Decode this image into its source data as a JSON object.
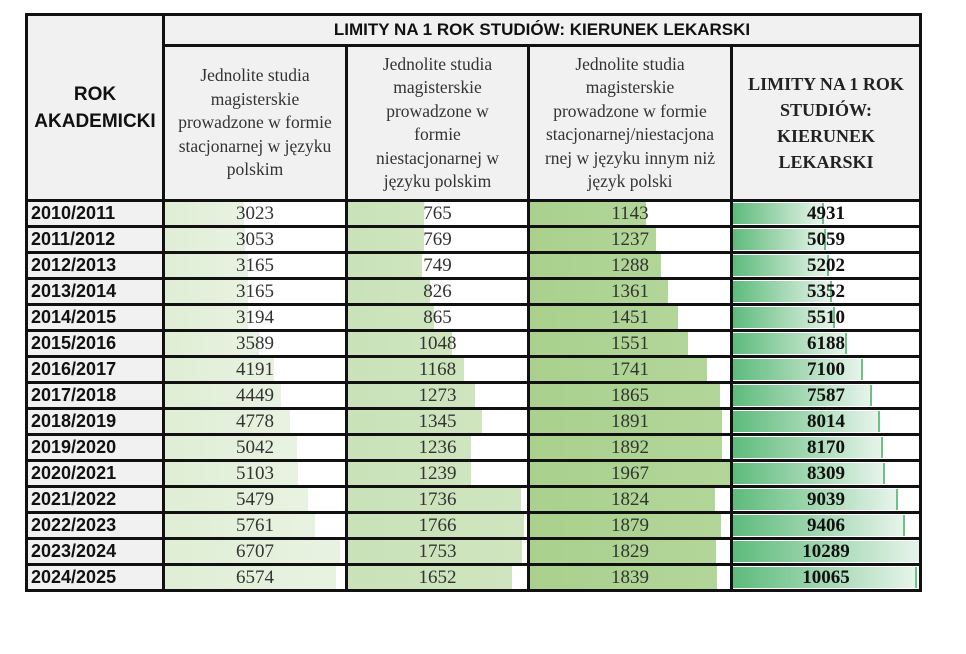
{
  "table": {
    "title": "LIMITY NA 1 ROK STUDIÓW: KIERUNEK LEKARSKI",
    "year_header": [
      "ROK",
      "AKADEMICKI"
    ],
    "columns": [
      {
        "key": "stacjonarne_pl",
        "label_lines": [
          "Jednolite studia",
          "magisterskie",
          "prowadzone w formie",
          "stacjonarnej w języku",
          "polskim"
        ],
        "bar_color": "#dfeed5"
      },
      {
        "key": "niestacjonarne_pl",
        "label_lines": [
          "Jednolite studia",
          "magisterskie",
          "prowadzone w",
          "formie",
          "niestacjonarnej w",
          "języku polskim"
        ],
        "bar_color": "#c9e2b8"
      },
      {
        "key": "obcojezyczne",
        "label_lines": [
          "Jednolite studia",
          "magisterskie",
          "prowadzone w formie",
          "stacjonarnej/niestacjona",
          "rnej w języku innym niż",
          "język polski"
        ],
        "bar_color": "#a9d18d"
      },
      {
        "key": "razem",
        "label_lines": [
          "LIMITY NA 1 ROK",
          "STUDIÓW:",
          "KIERUNEK",
          "LEKARSKI"
        ],
        "bar_color": "#5dbb7c",
        "bold": true
      }
    ],
    "rows": [
      {
        "year": "2010/2011",
        "values": [
          "3023",
          "765",
          "1143",
          "4931"
        ]
      },
      {
        "year": "2011/2012",
        "values": [
          "3053",
          "769",
          "1237",
          "5059"
        ]
      },
      {
        "year": "2012/2013",
        "values": [
          "3165",
          "749",
          "1288",
          "5202"
        ]
      },
      {
        "year": "2013/2014",
        "values": [
          "3165",
          "826",
          "1361",
          "5352"
        ]
      },
      {
        "year": "2014/2015",
        "values": [
          "3194",
          "865",
          "1451",
          "5510"
        ]
      },
      {
        "year": "2015/2016",
        "values": [
          "3589",
          "1048",
          "1551",
          "6188"
        ]
      },
      {
        "year": "2016/2017",
        "values": [
          "4191",
          "1168",
          "1741",
          "7100"
        ]
      },
      {
        "year": "2017/2018",
        "values": [
          "4449",
          "1273",
          "1865",
          "7587"
        ]
      },
      {
        "year": "2018/2019",
        "values": [
          "4778",
          "1345",
          "1891",
          "8014"
        ]
      },
      {
        "year": "2019/2020",
        "values": [
          "5042",
          "1236",
          "1892",
          "8170"
        ]
      },
      {
        "year": "2020/2021",
        "values": [
          "5103",
          "1239",
          "1967",
          "8309"
        ]
      },
      {
        "year": "2021/2022",
        "values": [
          "5479",
          "1736",
          "1824",
          "9039"
        ]
      },
      {
        "year": "2022/2023",
        "values": [
          "5761",
          "1766",
          "1879",
          "9406"
        ]
      },
      {
        "year": "2023/2024",
        "values": [
          "6707",
          "1753",
          "1829",
          "10289"
        ]
      },
      {
        "year": "2024/2025",
        "values": [
          "6574",
          "1652",
          "1839",
          "10065"
        ]
      }
    ],
    "bar_max": [
      6900,
      1800,
      1967,
      10289
    ]
  }
}
